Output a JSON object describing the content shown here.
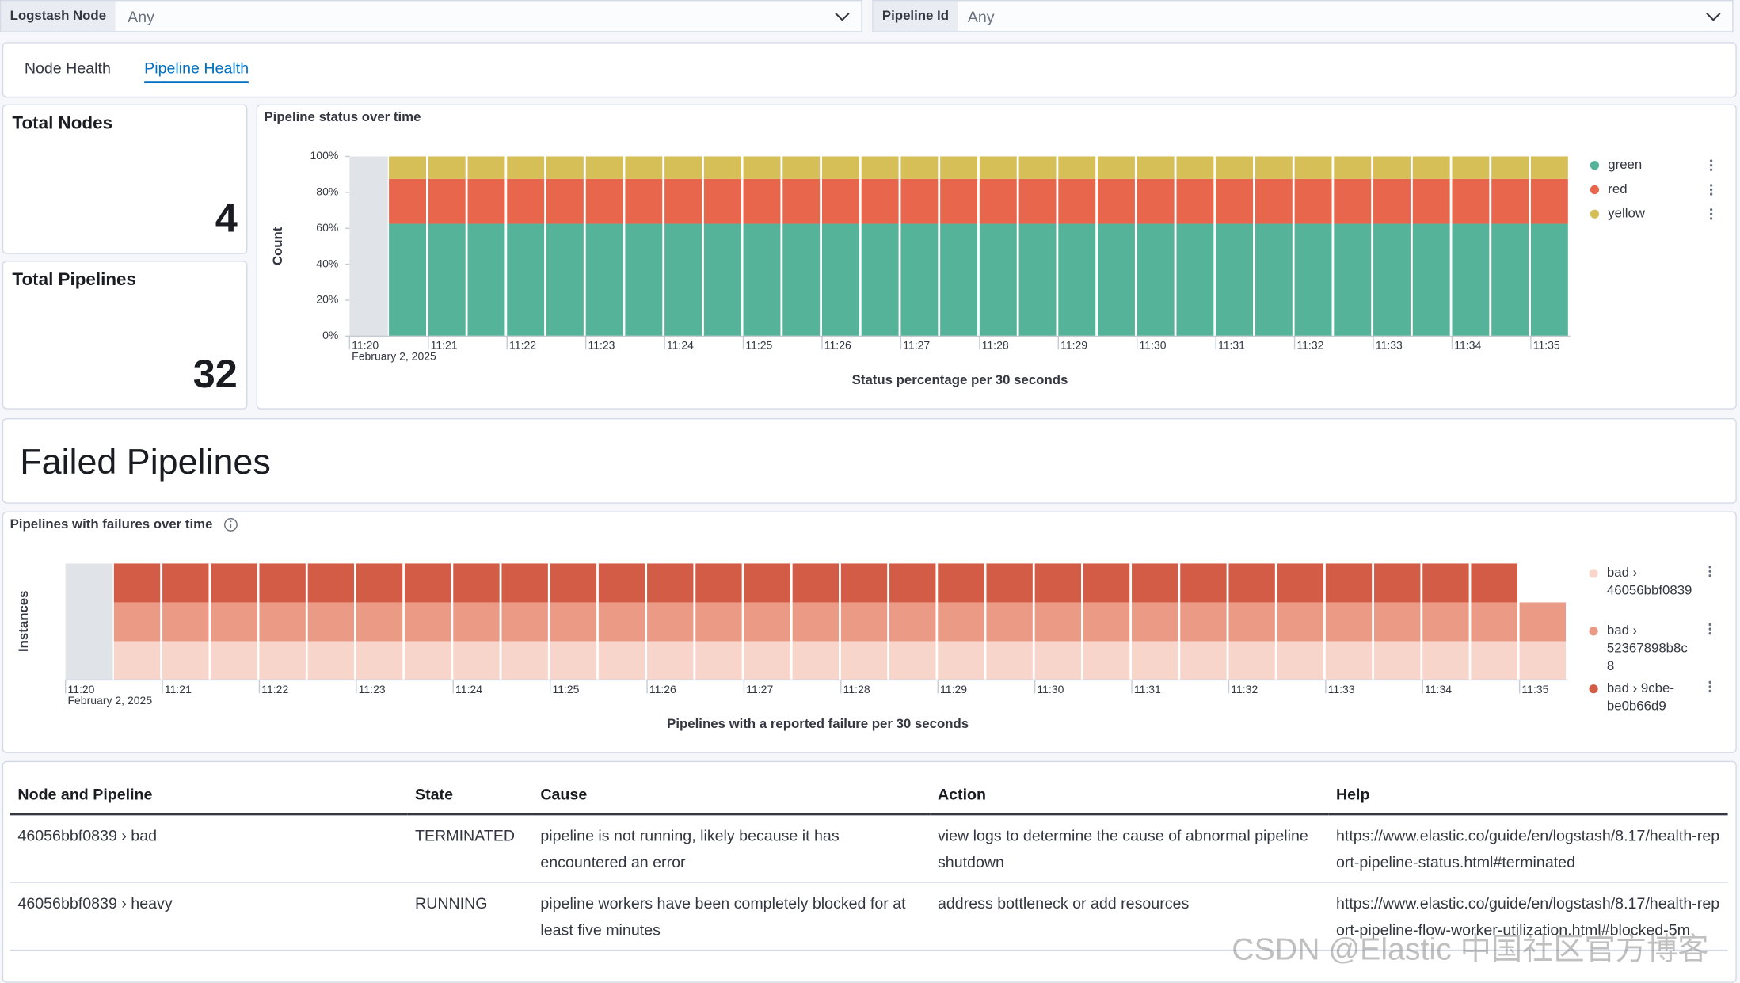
{
  "filters": [
    {
      "label": "Logstash Node",
      "value": "Any"
    },
    {
      "label": "Pipeline Id",
      "value": "Any"
    }
  ],
  "tabs": [
    "Node Health",
    "Pipeline Health"
  ],
  "active_tab": 1,
  "metrics": [
    {
      "title": "Total Nodes",
      "value": 4
    },
    {
      "title": "Total Pipelines",
      "value": 32
    }
  ],
  "section_title": "Failed Pipelines",
  "chart_data": [
    {
      "type": "bar",
      "stacked": true,
      "title": "Pipeline status over time",
      "y_label": "Count",
      "x_label": "Status percentage per 30 seconds",
      "date_label": "February 2, 2025",
      "x": [
        680.5,
        681,
        681.5,
        682,
        682.5,
        683,
        683.5,
        684,
        684.5,
        685,
        685.5,
        686,
        686.5,
        687,
        687.5,
        688,
        688.5,
        689,
        689.5,
        690,
        690.5,
        691,
        691.5,
        692,
        692.5,
        693,
        693.5,
        694,
        694.5,
        695
      ],
      "xlim": [
        680,
        695.5
      ],
      "xticks": [
        {
          "value": 680,
          "label": "11:20"
        },
        {
          "value": 681,
          "label": "11:21"
        },
        {
          "value": 682,
          "label": "11:22"
        },
        {
          "value": 683,
          "label": "11:23"
        },
        {
          "value": 684,
          "label": "11:24"
        },
        {
          "value": 685,
          "label": "11:25"
        },
        {
          "value": 686,
          "label": "11:26"
        },
        {
          "value": 687,
          "label": "11:27"
        },
        {
          "value": 688,
          "label": "11:28"
        },
        {
          "value": 689,
          "label": "11:29"
        },
        {
          "value": 690,
          "label": "11:30"
        },
        {
          "value": 691,
          "label": "11:31"
        },
        {
          "value": 692,
          "label": "11:32"
        },
        {
          "value": 693,
          "label": "11:33"
        },
        {
          "value": 694,
          "label": "11:34"
        },
        {
          "value": 695,
          "label": "11:35"
        }
      ],
      "ylim": [
        0,
        100
      ],
      "yticks": [
        {
          "value": 0,
          "label": "0%"
        },
        {
          "value": 20,
          "label": "20%"
        },
        {
          "value": 40,
          "label": "40%"
        },
        {
          "value": 60,
          "label": "60%"
        },
        {
          "value": 80,
          "label": "80%"
        },
        {
          "value": 100,
          "label": "100%"
        }
      ],
      "legend": "right",
      "series": [
        {
          "name": "green",
          "color": "#54b399",
          "values": [
            62.5,
            62.5,
            62.5,
            62.5,
            62.5,
            62.5,
            62.5,
            62.5,
            62.5,
            62.5,
            62.5,
            62.5,
            62.5,
            62.5,
            62.5,
            62.5,
            62.5,
            62.5,
            62.5,
            62.5,
            62.5,
            62.5,
            62.5,
            62.5,
            62.5,
            62.5,
            62.5,
            62.5,
            62.5,
            62.5
          ]
        },
        {
          "name": "red",
          "color": "#e7664c",
          "values": [
            25,
            25,
            25,
            25,
            25,
            25,
            25,
            25,
            25,
            25,
            25,
            25,
            25,
            25,
            25,
            25,
            25,
            25,
            25,
            25,
            25,
            25,
            25,
            25,
            25,
            25,
            25,
            25,
            25,
            25
          ]
        },
        {
          "name": "yellow",
          "color": "#d6bf57",
          "values": [
            12.5,
            12.5,
            12.5,
            12.5,
            12.5,
            12.5,
            12.5,
            12.5,
            12.5,
            12.5,
            12.5,
            12.5,
            12.5,
            12.5,
            12.5,
            12.5,
            12.5,
            12.5,
            12.5,
            12.5,
            12.5,
            12.5,
            12.5,
            12.5,
            12.5,
            12.5,
            12.5,
            12.5,
            12.5,
            12.5
          ]
        }
      ]
    },
    {
      "type": "bar",
      "stacked": true,
      "title": "Pipelines with failures over time",
      "y_label": "Instances",
      "x_label": "Pipelines with a reported failure per 30 seconds",
      "date_label": "February 2, 2025",
      "x": [
        680.5,
        681,
        681.5,
        682,
        682.5,
        683,
        683.5,
        684,
        684.5,
        685,
        685.5,
        686,
        686.5,
        687,
        687.5,
        688,
        688.5,
        689,
        689.5,
        690,
        690.5,
        691,
        691.5,
        692,
        692.5,
        693,
        693.5,
        694,
        694.5,
        695
      ],
      "xlim": [
        680,
        695.5
      ],
      "xticks": [
        {
          "value": 680,
          "label": "11:20"
        },
        {
          "value": 681,
          "label": "11:21"
        },
        {
          "value": 682,
          "label": "11:22"
        },
        {
          "value": 683,
          "label": "11:23"
        },
        {
          "value": 684,
          "label": "11:24"
        },
        {
          "value": 685,
          "label": "11:25"
        },
        {
          "value": 686,
          "label": "11:26"
        },
        {
          "value": 687,
          "label": "11:27"
        },
        {
          "value": 688,
          "label": "11:28"
        },
        {
          "value": 689,
          "label": "11:29"
        },
        {
          "value": 690,
          "label": "11:30"
        },
        {
          "value": 691,
          "label": "11:31"
        },
        {
          "value": 692,
          "label": "11:32"
        },
        {
          "value": 693,
          "label": "11:33"
        },
        {
          "value": 694,
          "label": "11:34"
        },
        {
          "value": 695,
          "label": "11:35"
        }
      ],
      "ylim": [
        0,
        3
      ],
      "legend": "right",
      "series": [
        {
          "name": "bad › 46056bbf0839",
          "color": "#f8d5cb",
          "values": [
            1,
            1,
            1,
            1,
            1,
            1,
            1,
            1,
            1,
            1,
            1,
            1,
            1,
            1,
            1,
            1,
            1,
            1,
            1,
            1,
            1,
            1,
            1,
            1,
            1,
            1,
            1,
            1,
            1,
            1
          ]
        },
        {
          "name": "bad › 52367898b8c8",
          "color": "#eb9a86",
          "values": [
            1,
            1,
            1,
            1,
            1,
            1,
            1,
            1,
            1,
            1,
            1,
            1,
            1,
            1,
            1,
            1,
            1,
            1,
            1,
            1,
            1,
            1,
            1,
            1,
            1,
            1,
            1,
            1,
            1,
            1
          ]
        },
        {
          "name": "bad › 9cbe-be0b66d9",
          "color": "#d35c46",
          "values": [
            1,
            1,
            1,
            1,
            1,
            1,
            1,
            1,
            1,
            1,
            1,
            1,
            1,
            1,
            1,
            1,
            1,
            1,
            1,
            1,
            1,
            1,
            1,
            1,
            1,
            1,
            1,
            1,
            1,
            null
          ]
        }
      ]
    }
  ],
  "table": {
    "columns": [
      "Node and Pipeline",
      "State",
      "Cause",
      "Action",
      "Help"
    ],
    "rows": [
      [
        "46056bbf0839 › bad",
        "TERMINATED",
        "pipeline is not running, likely because it has encountered an error",
        "view logs to determine the cause of abnormal pipeline shutdown",
        "https://www.elastic.co/guide/en/logstash/8.17/health-report-pipeline-status.html#terminated"
      ],
      [
        "46056bbf0839 › heavy",
        "RUNNING",
        "pipeline workers have been completely blocked for at least five minutes",
        "address bottleneck or add resources",
        "https://www.elastic.co/guide/en/logstash/8.17/health-report-pipeline-flow-worker-utilization.html#blocked-5m"
      ]
    ]
  },
  "watermark": "CSDN @Elastic 中国社区官方博客"
}
